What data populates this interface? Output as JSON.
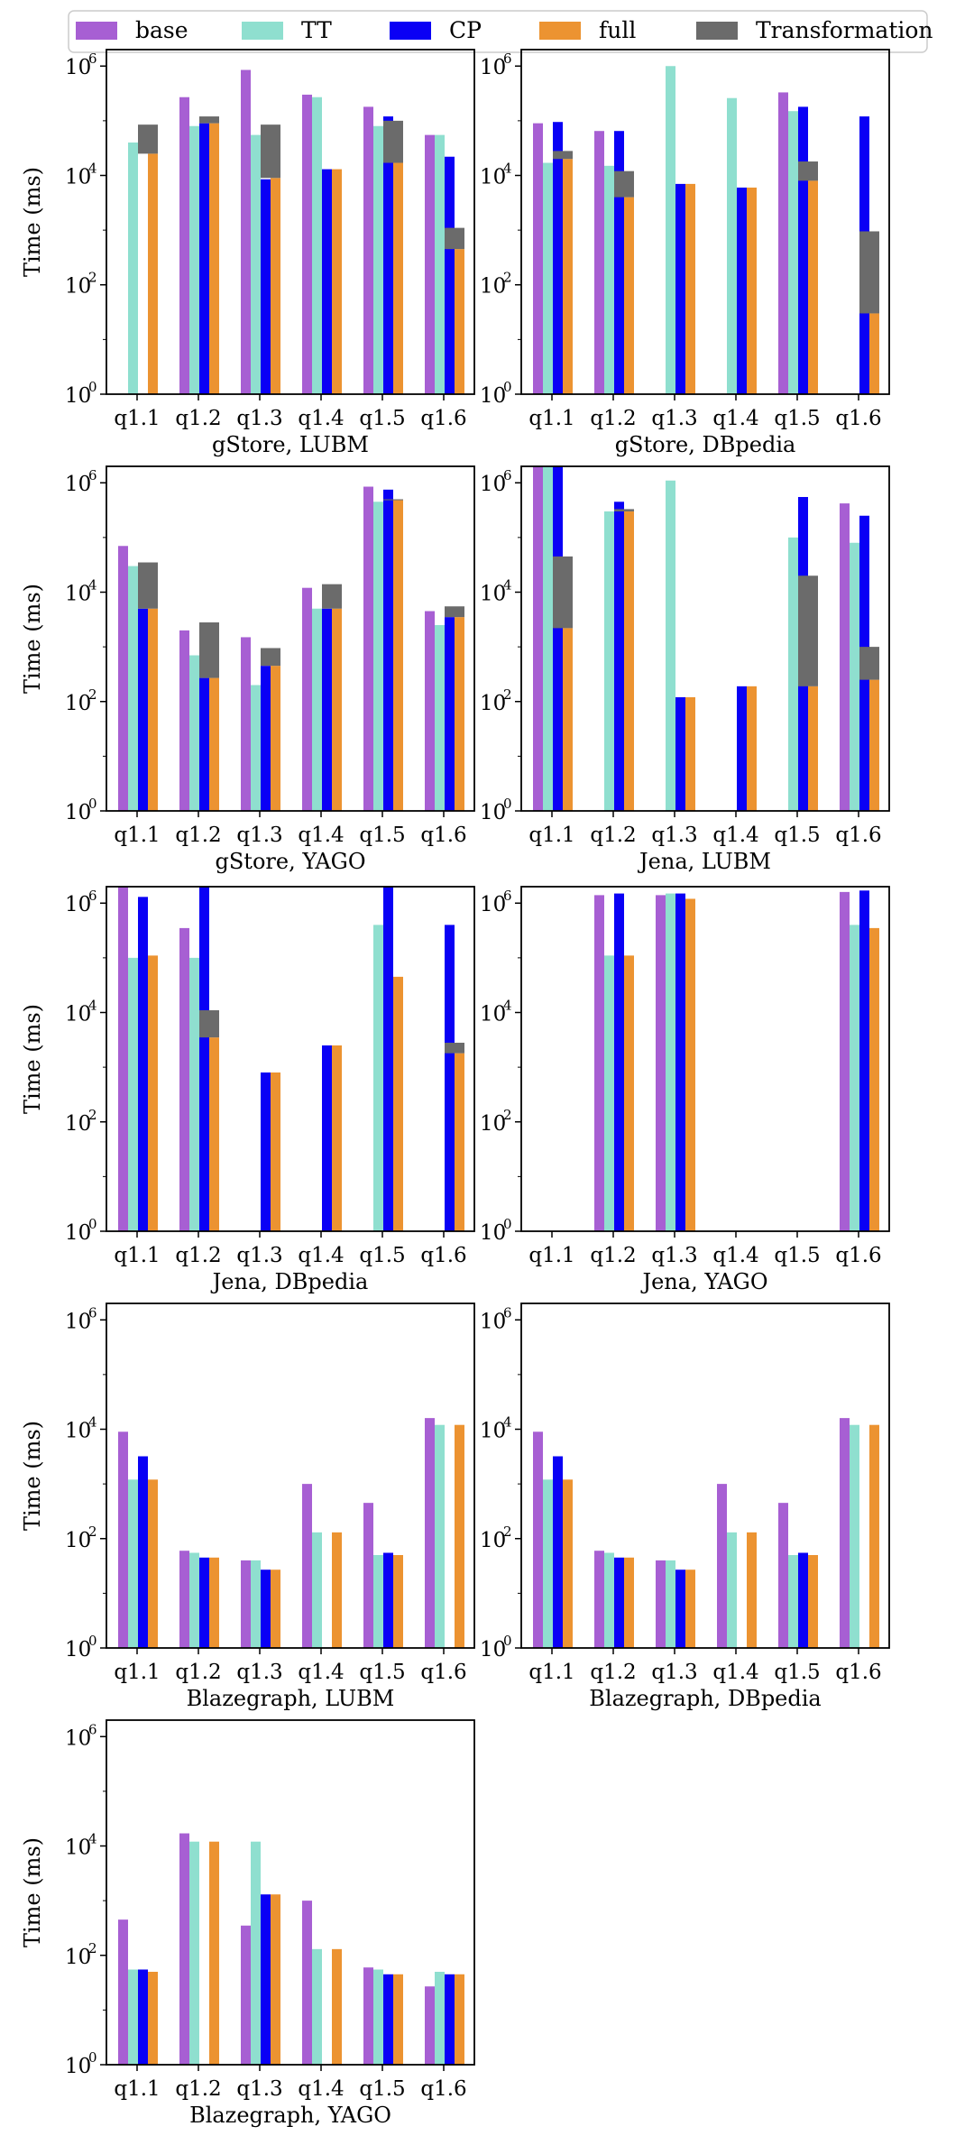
{
  "legend": {
    "entries": [
      {
        "key": "base",
        "label": "base",
        "color": "#a75fd3"
      },
      {
        "key": "TT",
        "label": "TT",
        "color": "#8fdfcf"
      },
      {
        "key": "CP",
        "label": "CP",
        "color": "#0a00f5"
      },
      {
        "key": "full",
        "label": "full",
        "color": "#ec9331"
      },
      {
        "key": "transformation",
        "label": "Transformation",
        "color": "#6b6b6b"
      }
    ]
  },
  "axes": {
    "ylabel": "Time (ms)",
    "ytick_labels": [
      "10",
      "10",
      "10",
      "10"
    ],
    "ytick_exponents": [
      "0",
      "2",
      "4",
      "6"
    ],
    "scale": "log",
    "ylim": [
      1,
      2000000
    ]
  },
  "chart_data": [
    {
      "type": "bar",
      "title": "gStore, LUBM",
      "categories": [
        "q1.1",
        "q1.2",
        "q1.3",
        "q1.4",
        "q1.5",
        "q1.6"
      ],
      "series": [
        {
          "name": "base",
          "values": [
            null,
            270000,
            850000,
            300000,
            180000,
            55000
          ]
        },
        {
          "name": "TT",
          "values": [
            40000,
            80000,
            55000,
            270000,
            80000,
            55000
          ]
        },
        {
          "name": "CP",
          "values": [
            null,
            90000,
            8500,
            13000,
            120000,
            22000
          ]
        },
        {
          "name": "full",
          "values": [
            25000,
            90000,
            9000,
            13000,
            17000,
            450
          ]
        },
        {
          "name": "Transformation",
          "values": [
            85000,
            120000,
            85000,
            null,
            100000,
            1100
          ]
        }
      ]
    },
    {
      "type": "bar",
      "title": "gStore, DBpedia",
      "categories": [
        "q1.1",
        "q1.2",
        "q1.3",
        "q1.4",
        "q1.5",
        "q1.6"
      ],
      "series": [
        {
          "name": "base",
          "values": [
            90000,
            65000,
            null,
            null,
            330000,
            null
          ]
        },
        {
          "name": "TT",
          "values": [
            17000,
            15000,
            1000000,
            260000,
            150000,
            null
          ]
        },
        {
          "name": "CP",
          "values": [
            95000,
            65000,
            7000,
            6000,
            180000,
            120000
          ]
        },
        {
          "name": "full",
          "values": [
            20000,
            4000,
            7000,
            6000,
            8000,
            30
          ]
        },
        {
          "name": "Transformation",
          "values": [
            28000,
            12000,
            null,
            null,
            18000,
            950
          ]
        }
      ]
    },
    {
      "type": "bar",
      "title": "gStore, YAGO",
      "categories": [
        "q1.1",
        "q1.2",
        "q1.3",
        "q1.4",
        "q1.5",
        "q1.6"
      ],
      "series": [
        {
          "name": "base",
          "values": [
            70000,
            2000,
            1500,
            12000,
            850000,
            4500
          ]
        },
        {
          "name": "TT",
          "values": [
            30000,
            700,
            200,
            5000,
            450000,
            2500
          ]
        },
        {
          "name": "CP",
          "values": [
            5000,
            270,
            450,
            5000,
            750000,
            3500
          ]
        },
        {
          "name": "full",
          "values": [
            5000,
            270,
            450,
            5000,
            480000,
            3500
          ]
        },
        {
          "name": "Transformation",
          "values": [
            35000,
            2800,
            950,
            14000,
            500000,
            5500
          ]
        }
      ]
    },
    {
      "type": "bar",
      "title": "Jena, LUBM",
      "categories": [
        "q1.1",
        "q1.2",
        "q1.3",
        "q1.4",
        "q1.5",
        "q1.6"
      ],
      "series": [
        {
          "name": "base",
          "values": [
            2000000,
            null,
            null,
            null,
            null,
            420000
          ]
        },
        {
          "name": "TT",
          "values": [
            2000000,
            300000,
            1100000,
            null,
            100000,
            80000
          ]
        },
        {
          "name": "CP",
          "values": [
            2000000,
            450000,
            120,
            190,
            550000,
            250000
          ]
        },
        {
          "name": "full",
          "values": [
            2200,
            300000,
            120,
            190,
            190,
            250
          ]
        },
        {
          "name": "Transformation",
          "values": [
            45000,
            330000,
            null,
            null,
            20000,
            1000
          ]
        }
      ]
    },
    {
      "type": "bar",
      "title": "Jena, DBpedia",
      "categories": [
        "q1.1",
        "q1.2",
        "q1.3",
        "q1.4",
        "q1.5",
        "q1.6"
      ],
      "series": [
        {
          "name": "base",
          "values": [
            2000000,
            350000,
            null,
            null,
            null,
            null
          ]
        },
        {
          "name": "TT",
          "values": [
            100000,
            100000,
            null,
            null,
            400000,
            null
          ]
        },
        {
          "name": "CP",
          "values": [
            1300000,
            2000000,
            800,
            2500,
            2000000,
            400000
          ]
        },
        {
          "name": "full",
          "values": [
            110000,
            3500,
            800,
            2500,
            45000,
            1800
          ]
        },
        {
          "name": "Transformation",
          "values": [
            null,
            11000,
            null,
            null,
            null,
            2800
          ]
        }
      ]
    },
    {
      "type": "bar",
      "title": "Jena, YAGO",
      "categories": [
        "q1.1",
        "q1.2",
        "q1.3",
        "q1.4",
        "q1.5",
        "q1.6"
      ],
      "series": [
        {
          "name": "base",
          "values": [
            null,
            1400000,
            1400000,
            null,
            null,
            1600000
          ]
        },
        {
          "name": "TT",
          "values": [
            null,
            110000,
            1500000,
            null,
            null,
            400000
          ]
        },
        {
          "name": "CP",
          "values": [
            null,
            1500000,
            1500000,
            null,
            null,
            1700000
          ]
        },
        {
          "name": "full",
          "values": [
            null,
            110000,
            1200000,
            null,
            null,
            350000
          ]
        },
        {
          "name": "Transformation",
          "values": [
            null,
            null,
            null,
            null,
            null,
            null
          ]
        }
      ]
    },
    {
      "type": "bar",
      "title": "Blazegraph, LUBM",
      "categories": [
        "q1.1",
        "q1.2",
        "q1.3",
        "q1.4",
        "q1.5",
        "q1.6"
      ],
      "series": [
        {
          "name": "base",
          "values": [
            9000,
            60,
            40,
            1000,
            450,
            16000
          ]
        },
        {
          "name": "TT",
          "values": [
            1200,
            55,
            40,
            130,
            50,
            12000
          ]
        },
        {
          "name": "CP",
          "values": [
            3200,
            45,
            27,
            null,
            55,
            null
          ]
        },
        {
          "name": "full",
          "values": [
            1200,
            45,
            27,
            130,
            50,
            12000
          ]
        },
        {
          "name": "Transformation",
          "values": [
            null,
            null,
            null,
            null,
            null,
            null
          ]
        }
      ]
    },
    {
      "type": "bar",
      "title": "Blazegraph, DBpedia",
      "categories": [
        "q1.1",
        "q1.2",
        "q1.3",
        "q1.4",
        "q1.5",
        "q1.6"
      ],
      "series": [
        {
          "name": "base",
          "values": [
            9000,
            60,
            40,
            1000,
            450,
            16000
          ]
        },
        {
          "name": "TT",
          "values": [
            1200,
            55,
            40,
            130,
            50,
            12000
          ]
        },
        {
          "name": "CP",
          "values": [
            3200,
            45,
            27,
            null,
            55,
            null
          ]
        },
        {
          "name": "full",
          "values": [
            1200,
            45,
            27,
            130,
            50,
            12000
          ]
        },
        {
          "name": "Transformation",
          "values": [
            null,
            null,
            null,
            null,
            null,
            null
          ]
        }
      ]
    },
    {
      "type": "bar",
      "title": "Blazegraph, YAGO",
      "categories": [
        "q1.1",
        "q1.2",
        "q1.3",
        "q1.4",
        "q1.5",
        "q1.6"
      ],
      "series": [
        {
          "name": "base",
          "values": [
            450,
            17000,
            350,
            1000,
            60,
            27
          ]
        },
        {
          "name": "TT",
          "values": [
            55,
            12000,
            12000,
            130,
            55,
            50
          ]
        },
        {
          "name": "CP",
          "values": [
            55,
            null,
            1300,
            null,
            45,
            45
          ]
        },
        {
          "name": "full",
          "values": [
            50,
            12000,
            1300,
            130,
            45,
            45
          ]
        },
        {
          "name": "Transformation",
          "values": [
            null,
            null,
            null,
            null,
            null,
            null
          ]
        }
      ]
    }
  ]
}
